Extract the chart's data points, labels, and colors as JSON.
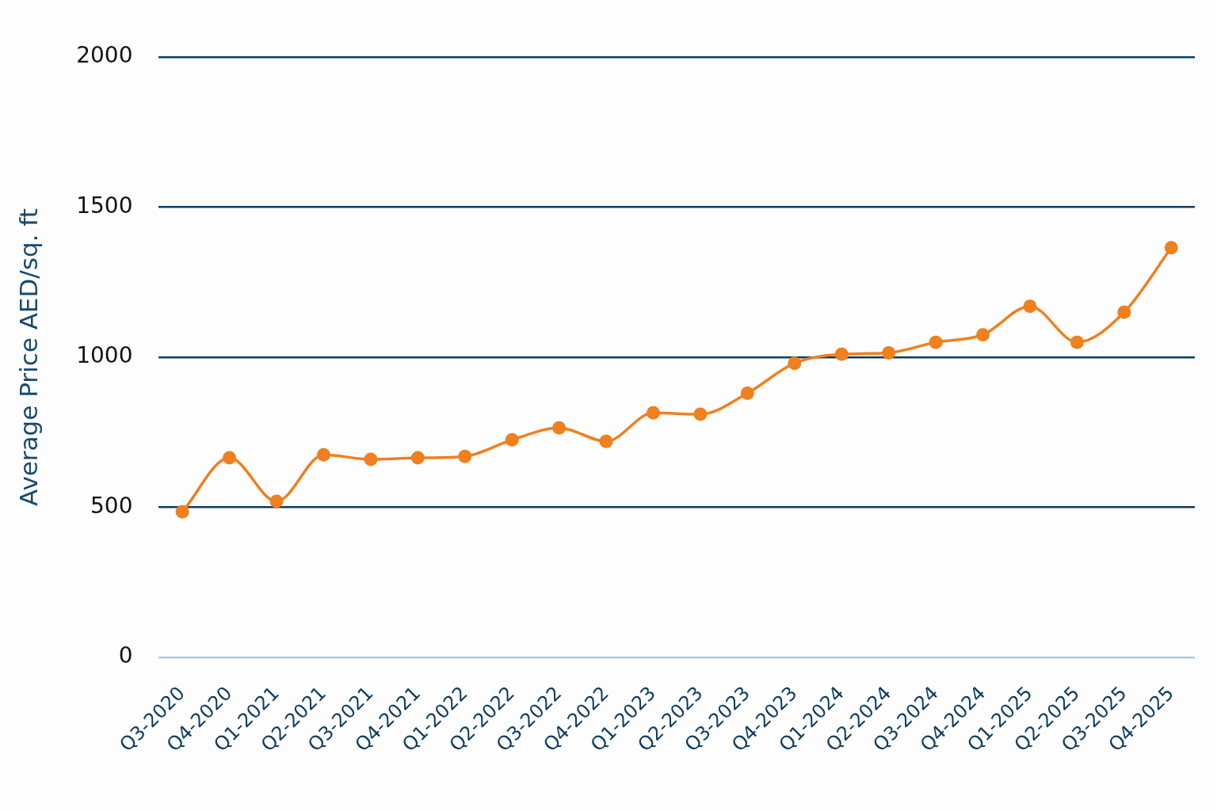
{
  "chart_data": {
    "type": "line",
    "ylabel": "Average Price AED/sq. ft",
    "categories": [
      "Q3-2020",
      "Q4-2020",
      "Q1-2021",
      "Q2-2021",
      "Q3-2021",
      "Q4-2021",
      "Q1-2022",
      "Q2-2022",
      "Q3-2022",
      "Q4-2022",
      "Q1-2023",
      "Q2-2023",
      "Q3-2023",
      "Q4-2023",
      "Q1-2024",
      "Q2-2024",
      "Q3-2024",
      "Q4-2024",
      "Q1-2025",
      "Q2-2025",
      "Q3-2025",
      "Q4-2025"
    ],
    "series": [
      {
        "color": "#f07f1e",
        "values": [
          485,
          665,
          520,
          675,
          660,
          665,
          670,
          725,
          765,
          720,
          815,
          810,
          880,
          980,
          1010,
          1015,
          1050,
          1075,
          1170,
          1050,
          1150,
          1365
        ]
      }
    ],
    "ylim": [
      0,
      2000
    ],
    "yticks": [
      0,
      500,
      1000,
      1500,
      2000
    ],
    "grid": "y",
    "legend": false,
    "marker": "circle",
    "line_style": "solid"
  }
}
